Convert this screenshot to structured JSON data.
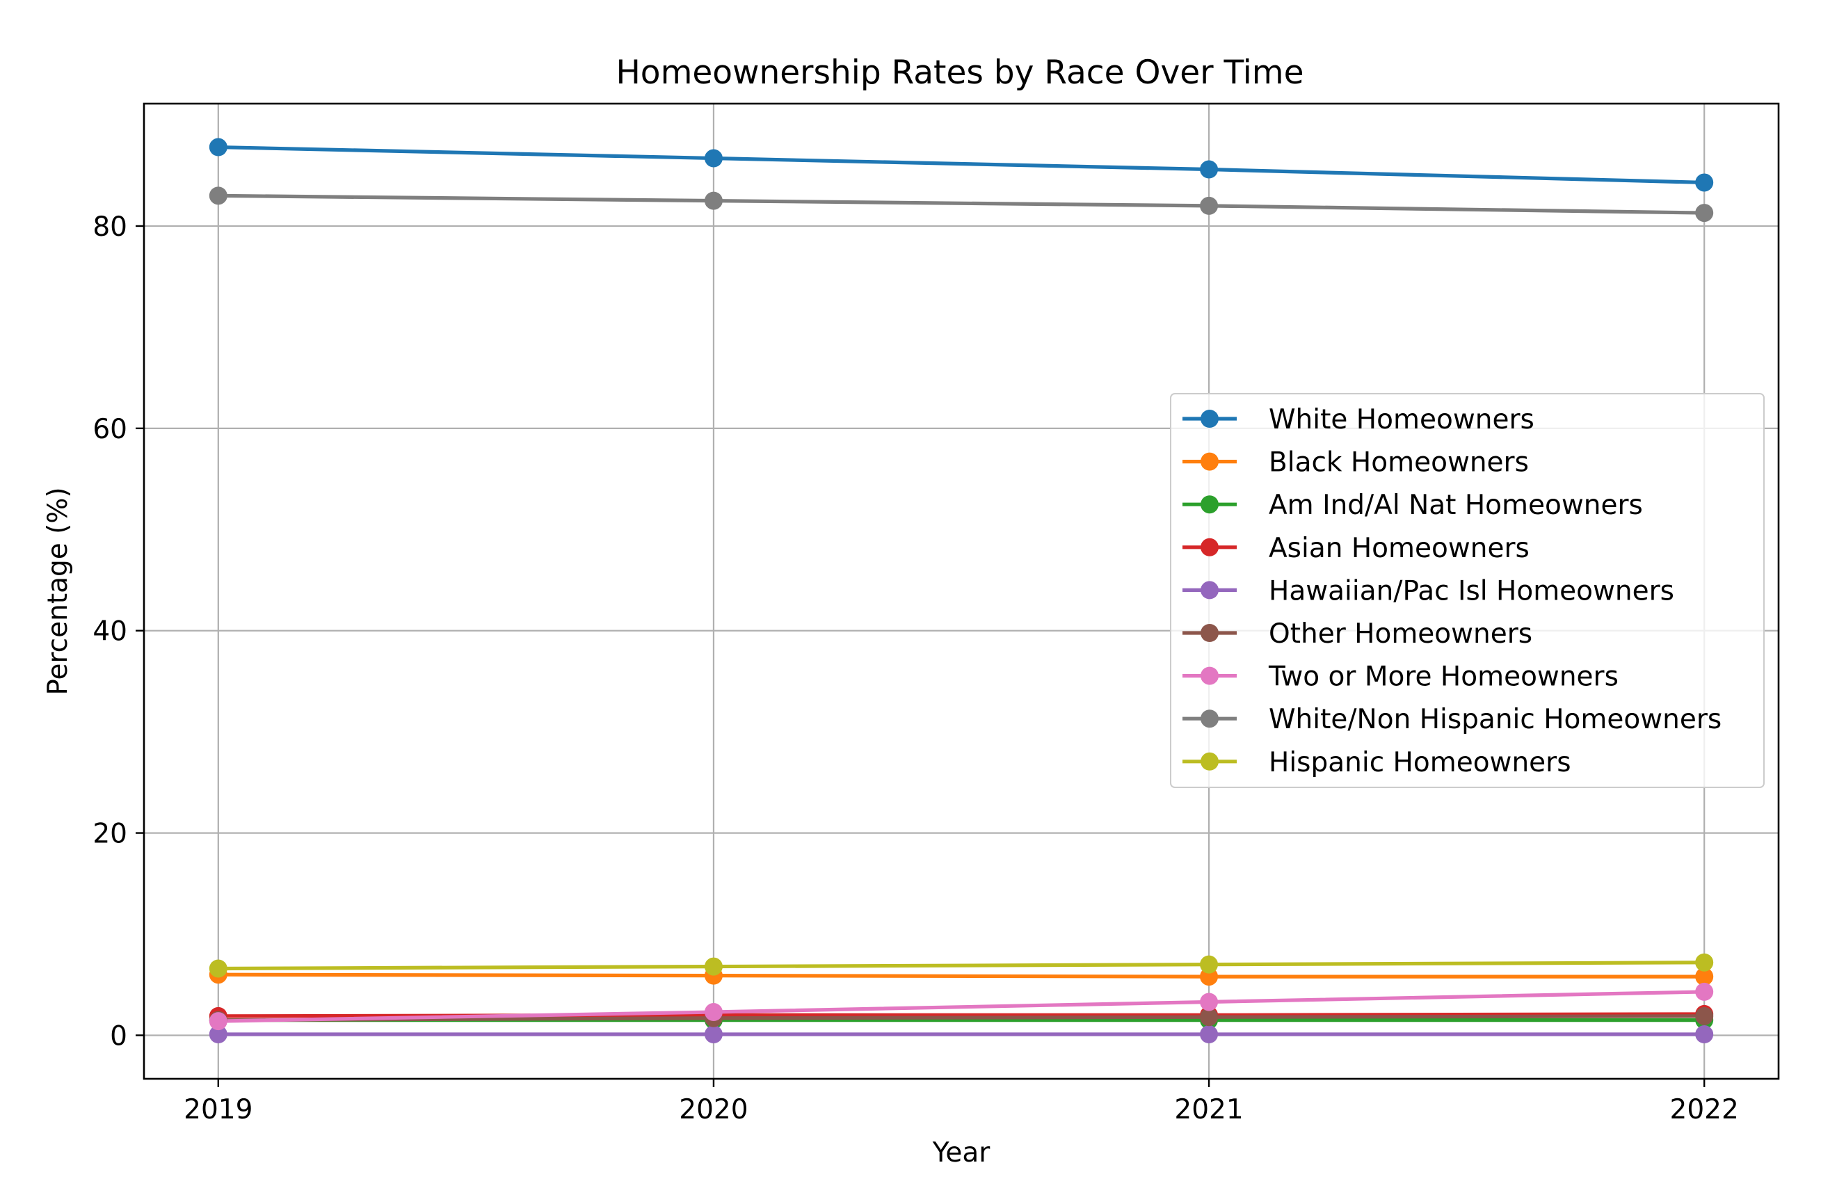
{
  "chart_data": {
    "type": "line",
    "title": "Homeownership Rates by Race Over Time",
    "xlabel": "Year",
    "ylabel": "Percentage (%)",
    "x": [
      2019,
      2020,
      2021,
      2022
    ],
    "x_tick_labels": [
      "2019",
      "2020",
      "2021",
      "2022"
    ],
    "y_ticks": [
      0,
      20,
      40,
      60,
      80
    ],
    "y_tick_labels": [
      "0",
      "20",
      "40",
      "60",
      "80"
    ],
    "xlim": [
      2018.85,
      2022.15
    ],
    "ylim": [
      -4.3,
      92.1
    ],
    "grid": true,
    "legend_position": "center-right",
    "series": [
      {
        "name": "White Homeowners",
        "color": "#1f77b4",
        "values": [
          87.8,
          86.7,
          85.6,
          84.3
        ]
      },
      {
        "name": "Black Homeowners",
        "color": "#ff7f0e",
        "values": [
          6.0,
          5.9,
          5.8,
          5.8
        ]
      },
      {
        "name": "Am Ind/Al Nat Homeowners",
        "color": "#2ca02c",
        "values": [
          1.5,
          1.5,
          1.5,
          1.5
        ]
      },
      {
        "name": "Asian Homeowners",
        "color": "#d62728",
        "values": [
          1.9,
          2.0,
          2.0,
          2.1
        ]
      },
      {
        "name": "Hawaiian/Pac Isl Homeowners",
        "color": "#9467bd",
        "values": [
          0.1,
          0.1,
          0.1,
          0.1
        ]
      },
      {
        "name": "Other Homeowners",
        "color": "#8c564b",
        "values": [
          1.5,
          1.7,
          1.8,
          1.9
        ]
      },
      {
        "name": "Two or More Homeowners",
        "color": "#e377c2",
        "values": [
          1.4,
          2.3,
          3.3,
          4.3
        ]
      },
      {
        "name": "White/Non Hispanic Homeowners",
        "color": "#7f7f7f",
        "values": [
          83.0,
          82.5,
          82.0,
          81.3
        ]
      },
      {
        "name": "Hispanic Homeowners",
        "color": "#bcbd22",
        "values": [
          6.6,
          6.8,
          7.0,
          7.2
        ]
      }
    ]
  }
}
